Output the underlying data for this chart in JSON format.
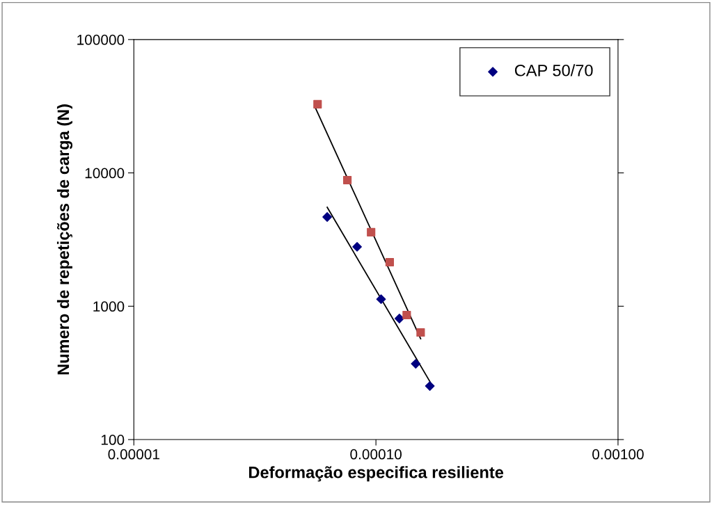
{
  "chart_data": {
    "type": "scatter",
    "xlabel": "Deformação especifica resiliente",
    "ylabel": "Numero de repetições de carga (N)",
    "log": "xy",
    "xlim": [
      1e-05,
      0.001
    ],
    "ylim": [
      100,
      100000
    ],
    "xticks": [
      {
        "value": 1e-05,
        "label": "0.00001"
      },
      {
        "value": 0.0001,
        "label": "0.00010"
      },
      {
        "value": 0.001,
        "label": "0.00100"
      }
    ],
    "yticks": [
      100,
      1000,
      10000,
      100000
    ],
    "grid": false,
    "legend": "top right",
    "series": [
      {
        "name": "CAP 50/70",
        "color": "#000080",
        "marker": "diamond",
        "x": [
          6.29e-05,
          8.36e-05,
          0.000105,
          0.000125,
          0.000146,
          0.000167
        ],
        "values": [
          4670,
          2790,
          1130,
          809,
          370,
          252
        ]
      },
      {
        "color": "#c0504d",
        "marker": "square",
        "x": [
          5.74e-05,
          7.62e-05,
          9.55e-05,
          0.000114,
          0.000134,
          0.000153
        ],
        "values": [
          32700,
          8830,
          3590,
          2140,
          859,
          636
        ]
      },
      {
        "type": "line",
        "color": "#000000",
        "marker": "none",
        "x": [
          6.29e-05,
          0.00017
        ],
        "values": [
          5520,
          258
        ]
      },
      {
        "type": "line",
        "color": "#000000",
        "marker": "none",
        "x": [
          5.62e-05,
          0.000153
        ],
        "values": [
          30800,
          571
        ]
      }
    ]
  }
}
